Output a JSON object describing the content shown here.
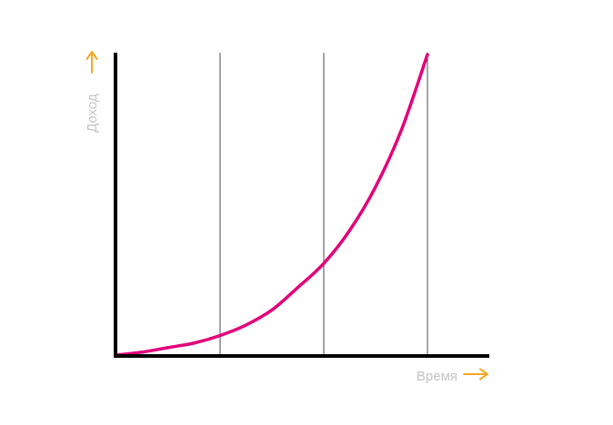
{
  "chart_data": {
    "type": "line",
    "title": "",
    "xlabel": "Время",
    "ylabel": "Доход",
    "xlim": [
      0,
      3
    ],
    "ylim": [
      0,
      1
    ],
    "grid": true,
    "gridlines_x": [
      1,
      2,
      3
    ],
    "series": [
      {
        "x": [
          0,
          0.25,
          0.5,
          0.75,
          1,
          1.25,
          1.5,
          1.75,
          2,
          2.25,
          2.5,
          2.75,
          3
        ],
        "values": [
          0,
          0.01,
          0.025,
          0.04,
          0.065,
          0.1,
          0.15,
          0.225,
          0.305,
          0.415,
          0.56,
          0.75,
          1.0
        ]
      }
    ],
    "colors": {
      "curve": "#e2007a",
      "axis": "#000000",
      "gridline": "#4d4d4d",
      "arrow": "#f5a623",
      "label": "#c4c4c4"
    }
  }
}
